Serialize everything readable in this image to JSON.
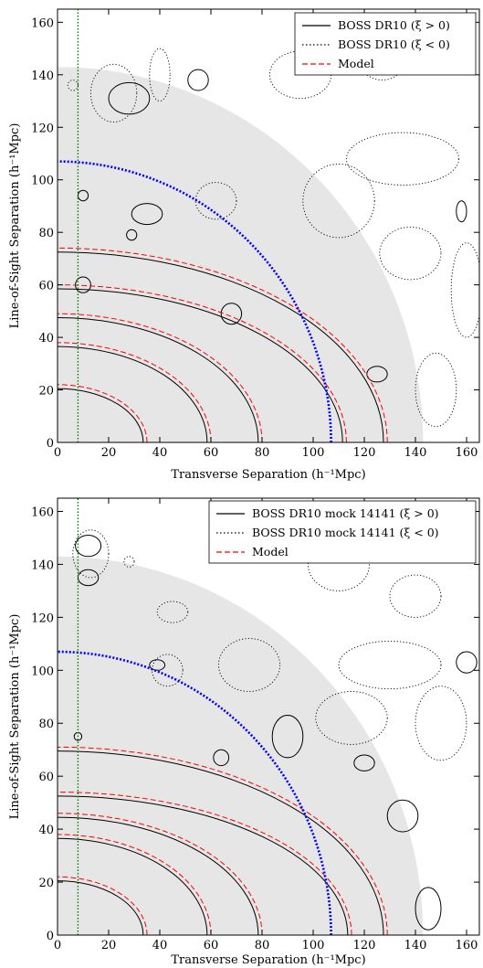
{
  "chart_data": [
    {
      "type": "contour",
      "panel": "top",
      "xlabel": "Transverse Separation (h⁻¹Mpc)",
      "ylabel": "Line-of-Sight Separation (h⁻¹Mpc)",
      "xlim": [
        0,
        165
      ],
      "ylim": [
        0,
        165
      ],
      "xticks": [
        "0",
        "20",
        "40",
        "60",
        "80",
        "100",
        "120",
        "140",
        "160"
      ],
      "yticks": [
        "0",
        "20",
        "40",
        "60",
        "80",
        "100",
        "120",
        "140",
        "160"
      ],
      "grid": false,
      "legend_position": "top-right",
      "legend": [
        {
          "label": "BOSS DR10 (ξ > 0)",
          "style": "solid",
          "color": "#000000"
        },
        {
          "label": "BOSS DR10 (ξ < 0)",
          "style": "dotted",
          "color": "#000000"
        },
        {
          "label": "Model",
          "style": "dashed",
          "color": "#ff0000"
        }
      ],
      "shaded_quarter_disk_radius": 143,
      "bao_arc_radius": 107,
      "vertical_line_x": 8,
      "model_contour_radii": [
        {
          "center": [
            0,
            0
          ],
          "rx": 35,
          "ry": 22
        },
        {
          "center": [
            0,
            0
          ],
          "rx": 60,
          "ry": 38
        },
        {
          "center": [
            0,
            0
          ],
          "rx": 80,
          "ry": 49
        },
        {
          "center": [
            0,
            0
          ],
          "rx": 113,
          "ry": 60
        },
        {
          "center": [
            0,
            0
          ],
          "rx": 129,
          "ry": 74
        }
      ],
      "blobs_positive": [
        {
          "x": 28,
          "y": 131,
          "rx": 8,
          "ry": 6
        },
        {
          "x": 55,
          "y": 138,
          "rx": 4,
          "ry": 4
        },
        {
          "x": 10,
          "y": 60,
          "rx": 3,
          "ry": 3
        },
        {
          "x": 10,
          "y": 94,
          "rx": 2,
          "ry": 2
        },
        {
          "x": 35,
          "y": 87,
          "rx": 6,
          "ry": 4
        },
        {
          "x": 29,
          "y": 79,
          "rx": 2,
          "ry": 2
        },
        {
          "x": 68,
          "y": 49,
          "rx": 4,
          "ry": 4
        },
        {
          "x": 125,
          "y": 26,
          "rx": 4,
          "ry": 3
        },
        {
          "x": 158,
          "y": 88,
          "rx": 2,
          "ry": 4
        }
      ],
      "blobs_negative": [
        {
          "x": 40,
          "y": 140,
          "rx": 4,
          "ry": 10
        },
        {
          "x": 22,
          "y": 133,
          "rx": 9,
          "ry": 11
        },
        {
          "x": 135,
          "y": 108,
          "rx": 22,
          "ry": 10
        },
        {
          "x": 110,
          "y": 92,
          "rx": 14,
          "ry": 14
        },
        {
          "x": 138,
          "y": 72,
          "rx": 12,
          "ry": 10
        },
        {
          "x": 95,
          "y": 140,
          "rx": 12,
          "ry": 9
        },
        {
          "x": 127,
          "y": 146,
          "rx": 9,
          "ry": 8
        },
        {
          "x": 160,
          "y": 58,
          "rx": 6,
          "ry": 18
        },
        {
          "x": 148,
          "y": 20,
          "rx": 8,
          "ry": 14
        },
        {
          "x": 62,
          "y": 92,
          "rx": 8,
          "ry": 7
        },
        {
          "x": 6,
          "y": 136,
          "rx": 2,
          "ry": 2
        }
      ]
    },
    {
      "type": "contour",
      "panel": "bottom",
      "xlabel": "Transverse Separation (h⁻¹Mpc)",
      "ylabel": "Line-of-Sight Separation (h⁻¹Mpc)",
      "xlim": [
        0,
        165
      ],
      "ylim": [
        0,
        165
      ],
      "xticks": [
        "0",
        "20",
        "40",
        "60",
        "80",
        "100",
        "120",
        "140",
        "160"
      ],
      "yticks": [
        "0",
        "20",
        "40",
        "60",
        "80",
        "100",
        "120",
        "140",
        "160"
      ],
      "grid": false,
      "legend_position": "top-right",
      "legend": [
        {
          "label": "BOSS DR10 mock 14141 (ξ > 0)",
          "style": "solid",
          "color": "#000000"
        },
        {
          "label": "BOSS DR10 mock 14141 (ξ < 0)",
          "style": "dotted",
          "color": "#000000"
        },
        {
          "label": "Model",
          "style": "dashed",
          "color": "#ff0000"
        }
      ],
      "shaded_quarter_disk_radius": 143,
      "bao_arc_radius": 107,
      "vertical_line_x": 8,
      "model_contour_radii": [
        {
          "center": [
            0,
            0
          ],
          "rx": 35,
          "ry": 22
        },
        {
          "center": [
            0,
            0
          ],
          "rx": 60,
          "ry": 38
        },
        {
          "center": [
            0,
            0
          ],
          "rx": 80,
          "ry": 46
        },
        {
          "center": [
            0,
            0
          ],
          "rx": 115,
          "ry": 54
        },
        {
          "center": [
            0,
            0
          ],
          "rx": 129,
          "ry": 71
        }
      ],
      "blobs_positive": [
        {
          "x": 12,
          "y": 147,
          "rx": 5,
          "ry": 4
        },
        {
          "x": 12,
          "y": 135,
          "rx": 4,
          "ry": 3
        },
        {
          "x": 39,
          "y": 102,
          "rx": 3,
          "ry": 2
        },
        {
          "x": 64,
          "y": 67,
          "rx": 3,
          "ry": 3
        },
        {
          "x": 90,
          "y": 75,
          "rx": 6,
          "ry": 8
        },
        {
          "x": 120,
          "y": 65,
          "rx": 4,
          "ry": 3
        },
        {
          "x": 135,
          "y": 45,
          "rx": 6,
          "ry": 6
        },
        {
          "x": 145,
          "y": 10,
          "rx": 5,
          "ry": 8
        },
        {
          "x": 160,
          "y": 103,
          "rx": 4,
          "ry": 4
        },
        {
          "x": 8,
          "y": 75,
          "rx": 1.5,
          "ry": 1.5
        }
      ],
      "blobs_negative": [
        {
          "x": 13,
          "y": 144,
          "rx": 7,
          "ry": 9
        },
        {
          "x": 28,
          "y": 141,
          "rx": 2,
          "ry": 2
        },
        {
          "x": 45,
          "y": 122,
          "rx": 6,
          "ry": 4
        },
        {
          "x": 110,
          "y": 140,
          "rx": 12,
          "ry": 10
        },
        {
          "x": 140,
          "y": 128,
          "rx": 10,
          "ry": 8
        },
        {
          "x": 130,
          "y": 102,
          "rx": 20,
          "ry": 9
        },
        {
          "x": 75,
          "y": 102,
          "rx": 12,
          "ry": 10
        },
        {
          "x": 115,
          "y": 82,
          "rx": 14,
          "ry": 10
        },
        {
          "x": 150,
          "y": 80,
          "rx": 10,
          "ry": 14
        },
        {
          "x": 43,
          "y": 100,
          "rx": 6,
          "ry": 6
        }
      ]
    }
  ]
}
